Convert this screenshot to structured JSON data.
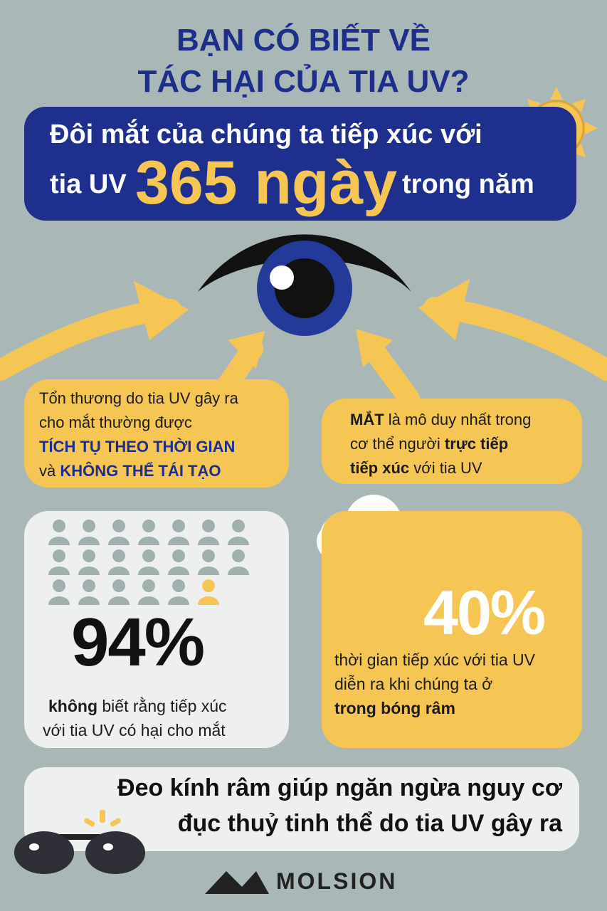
{
  "title": {
    "line1": "BẠN CÓ BIẾT VỀ",
    "line2": "TÁC HẠI CỦA TIA UV?"
  },
  "banner": {
    "line1": "Đôi mắt của chúng ta tiếp xúc với",
    "prefix": "tia UV",
    "highlight": "365 ngày",
    "suffix": "trong năm"
  },
  "damage_box": {
    "line1": "Tổn thương do tia UV gây ra",
    "line2": "cho mắt thường được",
    "emph1": "TÍCH TỤ THEO THỜI GIAN",
    "and": "và",
    "emph2": "KHÔNG THỂ TÁI TẠO"
  },
  "eye_box": {
    "emph_start": "MẮT",
    "line1_rest": "là mô duy nhất trong",
    "line2_start": "cơ thể người",
    "emph_mid": "trực tiếp",
    "emph_line3": "tiếp xúc",
    "line3_rest": "với tia UV"
  },
  "stat_94": {
    "value": "94%",
    "emph": "không",
    "line1_rest": "biết rằng tiếp xúc",
    "line2": "với tia UV có hại cho mắt"
  },
  "stat_40": {
    "value": "40%",
    "line1": "thời gian tiếp xúc với tia UV",
    "line2": "diễn ra khi chúng ta ở",
    "emph": "trong bóng râm"
  },
  "sunglasses_box": {
    "line1": "Đeo kính râm giúp ngăn ngừa nguy cơ",
    "line2": "đục thuỷ tinh thể do tia UV gây ra"
  },
  "brand": {
    "name": "MOLSION"
  },
  "icons": [
    "sun-icon",
    "eye-icon",
    "arrow-icon",
    "person-icon",
    "cloud-icon",
    "house-icon",
    "sunglasses-icon",
    "molsion-logo-icon"
  ],
  "colors": {
    "background": "#a9b8b7",
    "navy": "#1f2f8e",
    "yellow": "#f6c655",
    "light": "#eef0f0"
  }
}
